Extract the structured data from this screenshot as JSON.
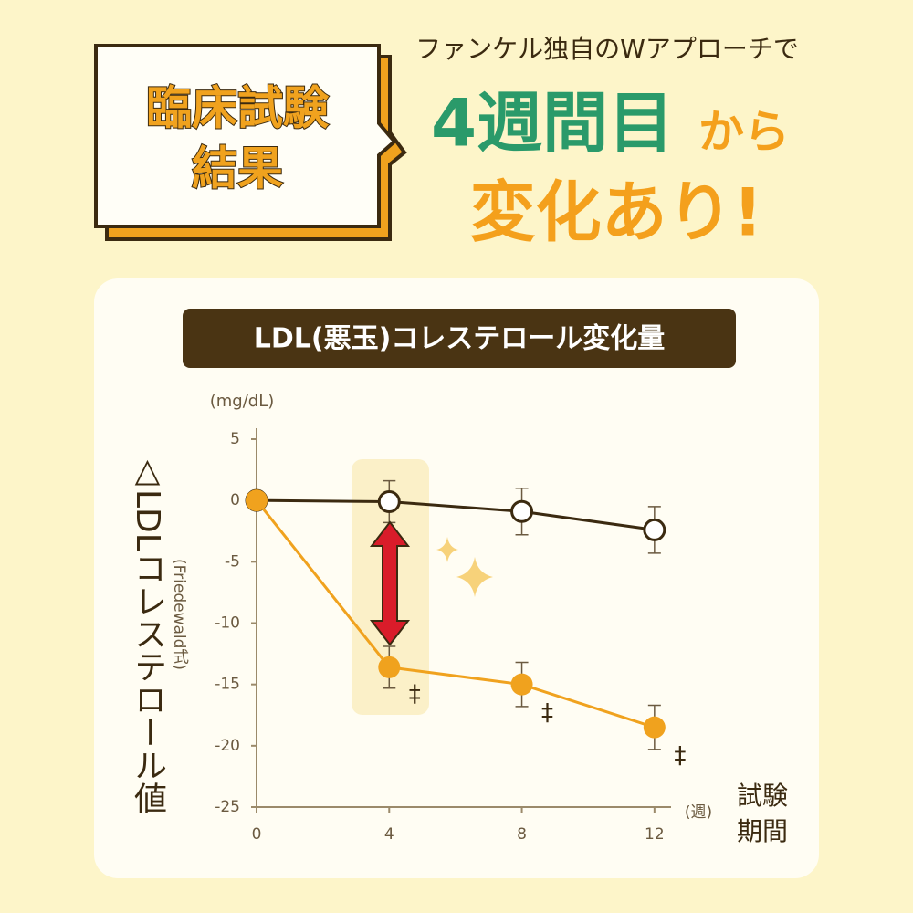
{
  "header": {
    "badge": [
      "臨床試験",
      "結果"
    ],
    "lead": "ファンケル独自のWアプローチで",
    "headline_main": "4週間目",
    "headline_particle": "から",
    "headline_sub": "変化あり!"
  },
  "chart_data": {
    "type": "line",
    "title": "LDL(悪玉)コレステロール変化量",
    "y_unit": "(mg/dL)",
    "y_label": "△LDLコレステロール値",
    "y_sublabel": "(Friedewald式)",
    "x_unit": "(週)",
    "x_label": [
      "試験",
      "期間"
    ],
    "x": [
      0,
      4,
      8,
      12
    ],
    "xlim": [
      0,
      12.5
    ],
    "xticks": [
      0,
      4,
      8,
      12
    ],
    "ylim": [
      -25,
      5
    ],
    "yticks": [
      -25,
      -20,
      -15,
      -10,
      -5,
      0,
      5
    ],
    "series": [
      {
        "color": "#3b2a10",
        "marker": "hollow",
        "values": [
          0,
          -0.1,
          -0.9,
          -2.4
        ],
        "errors": [
          null,
          1.7,
          1.9,
          1.9
        ]
      },
      {
        "color": "#f0a21e",
        "marker": "filled",
        "values": [
          0,
          -13.6,
          -15.0,
          -18.5
        ],
        "errors": [
          null,
          1.7,
          1.8,
          1.8
        ],
        "significance": [
          null,
          "‡",
          "‡",
          "‡"
        ]
      }
    ]
  }
}
